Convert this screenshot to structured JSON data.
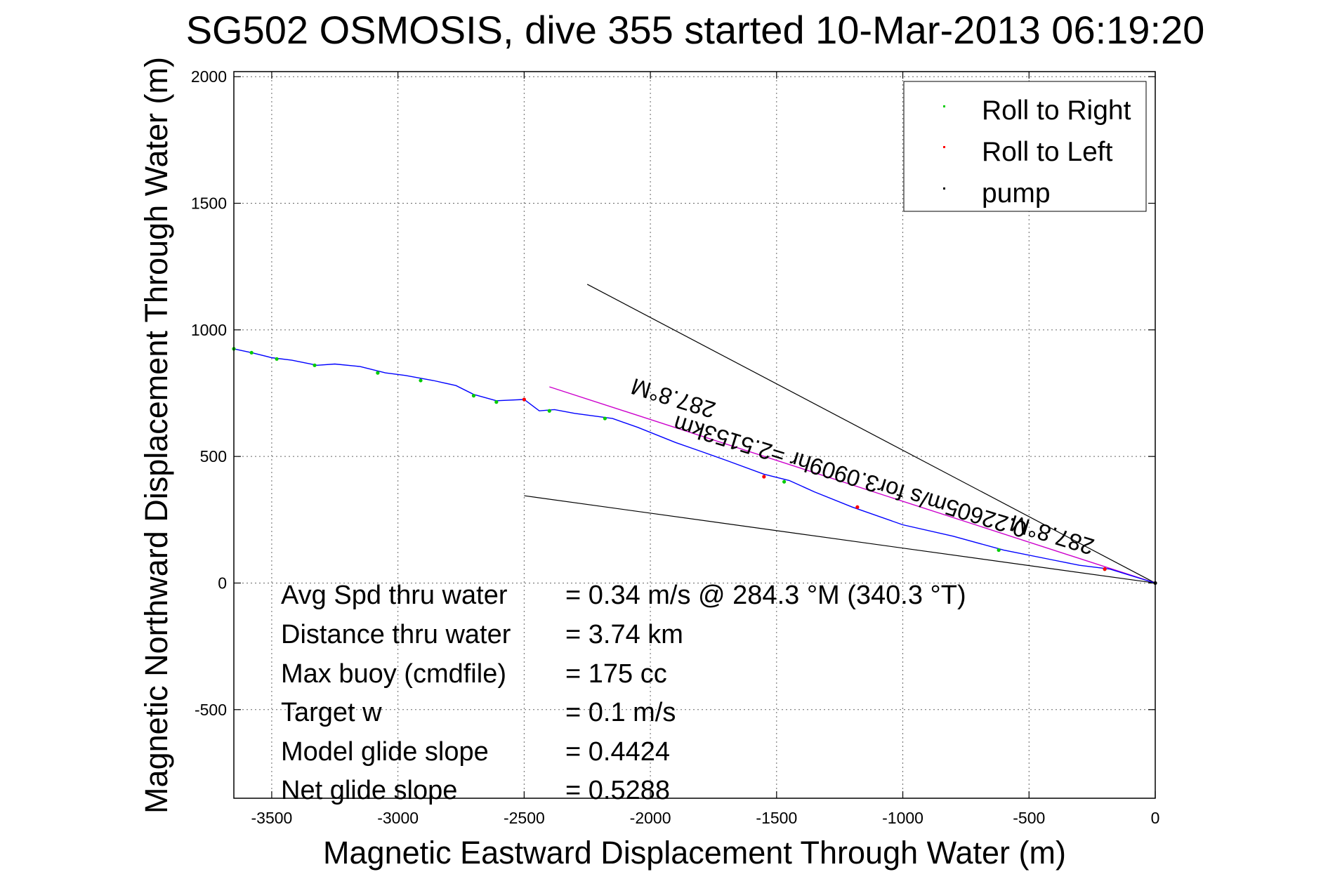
{
  "chart_data": {
    "type": "line",
    "title": "SG502 OSMOSIS, dive 355 started 10-Mar-2013 06:19:20",
    "xlabel": "Magnetic Eastward Displacement Through Water (m)",
    "ylabel": "Magnetic Northward Displacement Through Water (m)",
    "xlim": [
      -3650,
      0
    ],
    "ylim": [
      -850,
      2020
    ],
    "xticks": [
      -3500,
      -3000,
      -2500,
      -2000,
      -1500,
      -1000,
      -500,
      0
    ],
    "yticks": [
      -500,
      0,
      500,
      1000,
      1500,
      2000
    ],
    "grid": true,
    "legend": {
      "placement": "top-right",
      "entries": [
        {
          "label": "Roll to Right",
          "color": "#00cc00"
        },
        {
          "label": "Roll to Left",
          "color": "#ff0000"
        },
        {
          "label": "pump",
          "color": "#000000"
        }
      ]
    },
    "track": {
      "color": "#0000ff",
      "x": [
        -3650,
        -3580,
        -3500,
        -3420,
        -3370,
        -3320,
        -3250,
        -3150,
        -3050,
        -2970,
        -2860,
        -2770,
        -2700,
        -2610,
        -2500,
        -2440,
        -2380,
        -2300,
        -2150,
        -2050,
        -1900,
        -1800,
        -1700,
        -1550,
        -1450,
        -1350,
        -1200,
        -1000,
        -800,
        -600,
        -400,
        -300,
        -180,
        0
      ],
      "y": [
        925,
        910,
        890,
        880,
        870,
        860,
        865,
        855,
        830,
        820,
        800,
        780,
        745,
        720,
        725,
        680,
        685,
        670,
        650,
        615,
        555,
        520,
        485,
        430,
        405,
        360,
        300,
        230,
        185,
        130,
        90,
        70,
        55,
        0
      ]
    },
    "roll_right_points": {
      "x": [
        -3650,
        -3580,
        -3480,
        -3330,
        -3080,
        -2910,
        -2700,
        -2610,
        -2400,
        -2180,
        -1470,
        -620,
        -200
      ],
      "y": [
        925,
        910,
        885,
        860,
        830,
        800,
        740,
        715,
        680,
        650,
        400,
        130,
        55
      ]
    },
    "roll_left_points": {
      "x": [
        -2500,
        -1550,
        -1180,
        -200
      ],
      "y": [
        725,
        420,
        300,
        55
      ]
    },
    "pump_points": {
      "x": [
        0
      ],
      "y": [
        0
      ]
    },
    "heading_line": {
      "color": "#cc00cc",
      "x": [
        -2400,
        0
      ],
      "y": [
        775,
        0
      ]
    },
    "cone_lines": [
      {
        "color": "#000000",
        "x": [
          -2250,
          0
        ],
        "y": [
          1180,
          0
        ]
      },
      {
        "color": "#000000",
        "x": [
          -2500,
          0
        ],
        "y": [
          345,
          0
        ]
      }
    ],
    "annotations": [
      {
        "text": "287.8°M",
        "x": -1900,
        "y": 760,
        "rotate": 197
      },
      {
        "text": "0.22605m/s for3.0909hr =2.5153km",
        "x": -1200,
        "y": 450,
        "rotate": 197
      },
      {
        "text": "287.8°M",
        "x": -400,
        "y": 220,
        "rotate": 197
      }
    ]
  },
  "stats": [
    {
      "label": "Avg Spd thru water",
      "value": "=  0.34 m/s @ 284.3 °M (340.3 °T)"
    },
    {
      "label": "Distance thru water",
      "value": "=  3.74 km"
    },
    {
      "label": "Max buoy (cmdfile)",
      "value": "= 175 cc"
    },
    {
      "label": "Target w",
      "value": "= 0.1 m/s"
    },
    {
      "label": "Model glide slope",
      "value": "= 0.4424"
    },
    {
      "label": "Net glide slope",
      "value": "= 0.5288"
    }
  ]
}
